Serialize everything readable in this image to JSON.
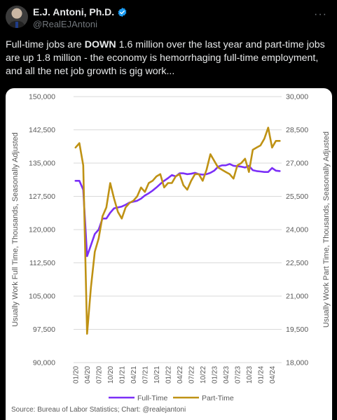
{
  "post": {
    "author_name": "E.J. Antoni, Ph.D.",
    "handle": "@RealEJAntoni",
    "text_before": "Full-time jobs are ",
    "text_emphasis": "DOWN",
    "text_after": " 1.6 million over the last year and part-time jobs are up 1.8 million - the economy is hemorrhaging full-time employment, and all the net job growth is gig work...",
    "verified_icon": "verified-badge-icon",
    "more_icon": "more-options-icon"
  },
  "chart_data": {
    "type": "line",
    "ylabel_left": "Usually Work Full Time, Thousands, Seasonally Adjusted",
    "ylabel_right": "Usually Work Part Time, Thousands, Seasonally Adjusted",
    "left_ticks": [
      "150,000",
      "142,500",
      "135,000",
      "127,500",
      "120,000",
      "112,500",
      "105,000",
      "97,500",
      "90,000"
    ],
    "right_ticks": [
      "30,000",
      "28,500",
      "27,000",
      "25,500",
      "24,000",
      "22,500",
      "21,000",
      "19,500",
      "18,000"
    ],
    "x_ticks": [
      "01/20",
      "04/20",
      "07/20",
      "10/20",
      "01/21",
      "04/21",
      "07/21",
      "10/21",
      "01/22",
      "04/22",
      "07/22",
      "10/22",
      "01/23",
      "04/23",
      "07/23",
      "10/23",
      "01/24",
      "04/24"
    ],
    "ylim_left": [
      90000,
      150000
    ],
    "ylim_right": [
      18000,
      30000
    ],
    "source": "Source: Bureau of Labor Statistics; Chart: @realejantoni",
    "colors": {
      "full_time": "#7b2ff7",
      "part_time": "#bf9214"
    },
    "series": [
      {
        "name": "Full-Time",
        "axis": "left",
        "values": [
          131000,
          131000,
          129000,
          114000,
          116500,
          119000,
          120000,
          122500,
          122500,
          123800,
          124800,
          125000,
          125200,
          125600,
          126100,
          126300,
          126500,
          127000,
          127700,
          128200,
          128800,
          129500,
          130300,
          131000,
          131600,
          132300,
          132000,
          132700,
          132700,
          132500,
          132600,
          132800,
          132500,
          132400,
          132500,
          132800,
          133300,
          134200,
          134500,
          134500,
          134800,
          134400,
          134300,
          134200,
          134000,
          134400,
          133400,
          133200,
          133100,
          133000,
          133000,
          133900,
          133300,
          133200
        ]
      },
      {
        "name": "Part-Time",
        "axis": "right",
        "values": [
          27700,
          27900,
          26900,
          19300,
          21400,
          23000,
          23600,
          24600,
          25000,
          26100,
          25400,
          24800,
          24500,
          25000,
          25200,
          25300,
          25500,
          25900,
          25700,
          26100,
          26200,
          26400,
          26500,
          25900,
          26100,
          26100,
          26400,
          26500,
          26000,
          25800,
          26200,
          26500,
          26500,
          26200,
          26700,
          27400,
          27100,
          26800,
          26700,
          26600,
          26500,
          26300,
          26900,
          27000,
          27200,
          26600,
          27600,
          27700,
          27800,
          28100,
          28600,
          27700,
          28000,
          28000
        ]
      }
    ]
  }
}
